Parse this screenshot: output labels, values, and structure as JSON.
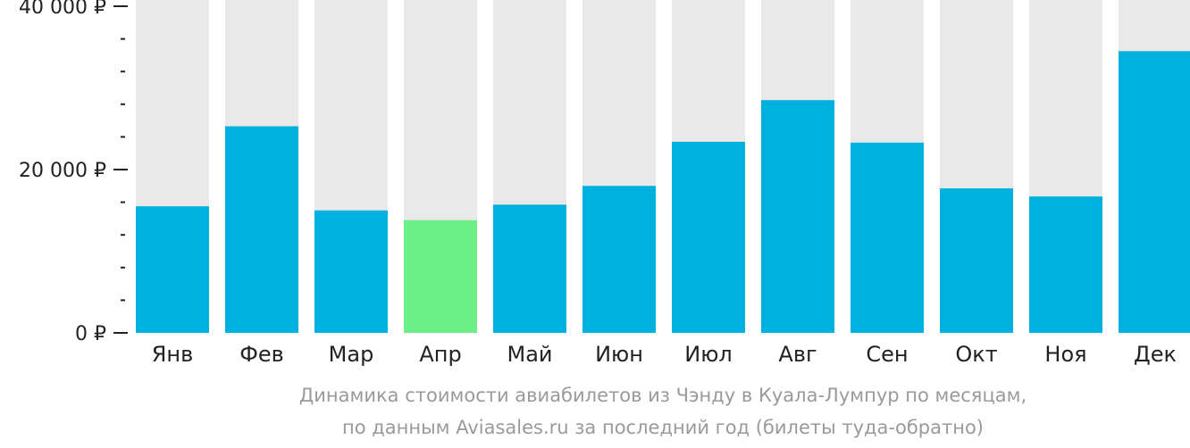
{
  "colors": {
    "bar": "#00b0dd",
    "highlight_bar": "#6bef86",
    "track": "#e9e9e9",
    "axis": "#222222",
    "caption": "#9a9a9a"
  },
  "caption": {
    "line1": "Динамика стоимости авиабилетов из Чэнду в Куала-Лумпур по месяцам,",
    "line2": "по данным Aviasales.ru за последний год (билеты туда-обратно)"
  },
  "chart_data": {
    "type": "bar",
    "categories": [
      "Янв",
      "Фев",
      "Мар",
      "Апр",
      "Май",
      "Июн",
      "Июл",
      "Авг",
      "Сен",
      "Окт",
      "Ноя",
      "Дек"
    ],
    "values": [
      15500,
      25300,
      15000,
      13800,
      15700,
      18000,
      23400,
      28500,
      23300,
      17700,
      16700,
      34500
    ],
    "highlight_index": 3,
    "ylim": [
      0,
      40000
    ],
    "y_ticks": [
      {
        "value": 0,
        "label": "0 ₽"
      },
      {
        "value": 20000,
        "label": "20 000 ₽"
      },
      {
        "value": 40000,
        "label": "40 000 ₽"
      }
    ],
    "minor_tick_step": 4000,
    "title": "",
    "xlabel": "",
    "ylabel": "",
    "grid": false,
    "legend": "none"
  }
}
